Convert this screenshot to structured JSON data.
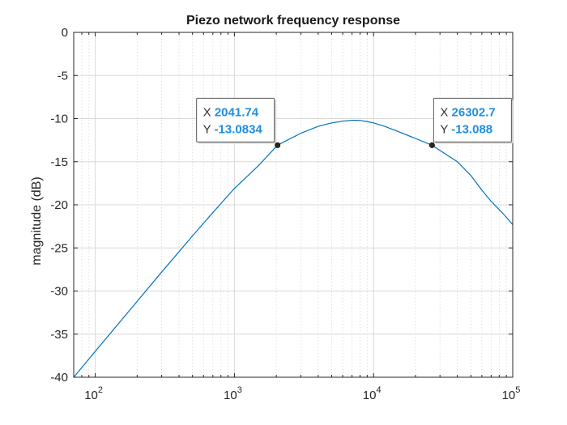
{
  "chart_data": {
    "type": "line",
    "title": "Piezo network frequency response",
    "xlabel": "",
    "ylabel": "magnitude (dB)",
    "x_scale": "log",
    "xlim": [
      70,
      100000
    ],
    "ylim": [
      -40,
      0
    ],
    "x_ticks": [
      {
        "value": 100,
        "base": "10",
        "exp": "2"
      },
      {
        "value": 1000,
        "base": "10",
        "exp": "3"
      },
      {
        "value": 10000,
        "base": "10",
        "exp": "4"
      },
      {
        "value": 100000,
        "base": "10",
        "exp": "5"
      }
    ],
    "y_ticks": [
      0,
      -5,
      -10,
      -15,
      -20,
      -25,
      -30,
      -35,
      -40
    ],
    "y_tick_labels": [
      "0",
      "-5",
      "-10",
      "-15",
      "-20",
      "-25",
      "-30",
      "-35",
      "-40"
    ],
    "grid": true,
    "minor_grid": true,
    "series": [
      {
        "color": "#0072BD",
        "x": [
          70,
          100,
          150,
          200,
          300,
          500,
          700,
          1000,
          1500,
          2041.74,
          3000,
          4000,
          5000,
          6000,
          7000,
          7500,
          8000,
          9000,
          10000,
          12000,
          15000,
          20000,
          26302.7,
          30000,
          40000,
          50000,
          60000,
          70000,
          85000,
          100000
        ],
        "y": [
          -40.0,
          -37.0,
          -33.6,
          -31.2,
          -27.8,
          -23.6,
          -20.9,
          -18.1,
          -15.4,
          -13.0834,
          -11.7,
          -10.9,
          -10.5,
          -10.3,
          -10.2,
          -10.2,
          -10.22,
          -10.35,
          -10.5,
          -10.9,
          -11.5,
          -12.3,
          -13.088,
          -13.7,
          -15.0,
          -16.6,
          -18.3,
          -19.6,
          -21.0,
          -22.3
        ]
      }
    ],
    "datatips": [
      {
        "x_key": "X",
        "y_key": "Y",
        "x_text": "2041.74",
        "y_text": "-13.0834",
        "x": 2041.74,
        "y": -13.0834,
        "box_side": "left"
      },
      {
        "x_key": "X",
        "y_key": "Y",
        "x_text": "26302.7",
        "y_text": "-13.088",
        "x": 26302.7,
        "y": -13.088,
        "box_side": "right"
      }
    ]
  },
  "colors": {
    "line": "#0072BD",
    "datatip_value": "#1E8FE0",
    "grid": "#d9d9d9",
    "minor_grid": "#d9d9d9",
    "axis": "#262626"
  }
}
